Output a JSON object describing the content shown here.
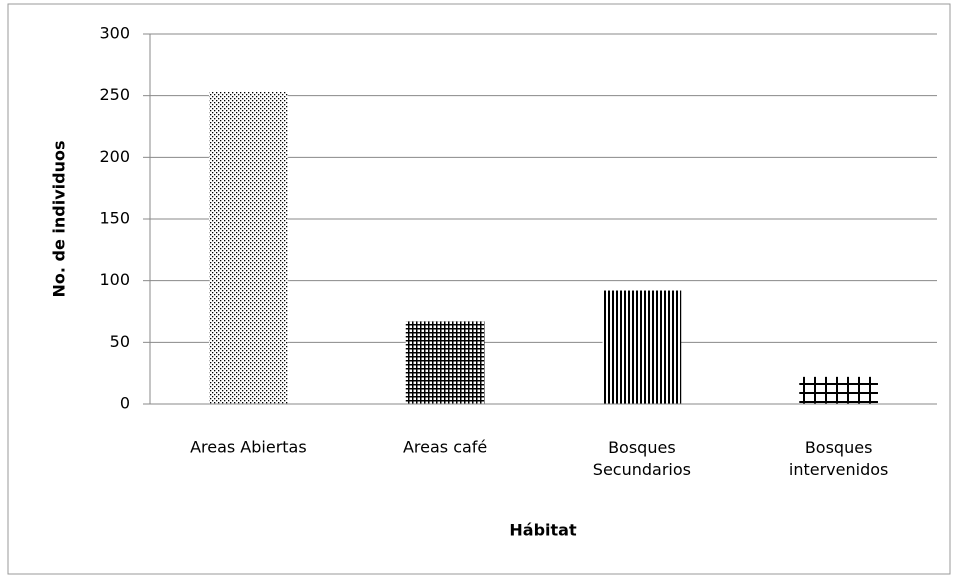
{
  "chart_data": {
    "type": "bar",
    "x_label": "Hábitat",
    "y_label": "No. de individuos",
    "categories": [
      "Areas Abiertas",
      "Areas café",
      "Bosques\nSecundarios",
      "Bosques\nintervenidos"
    ],
    "values": [
      253,
      67,
      92,
      22
    ],
    "color": "#000000",
    "ylim": [
      0,
      300
    ],
    "yticks": [
      0,
      50,
      100,
      150,
      200,
      250,
      300
    ],
    "grid": true
  }
}
